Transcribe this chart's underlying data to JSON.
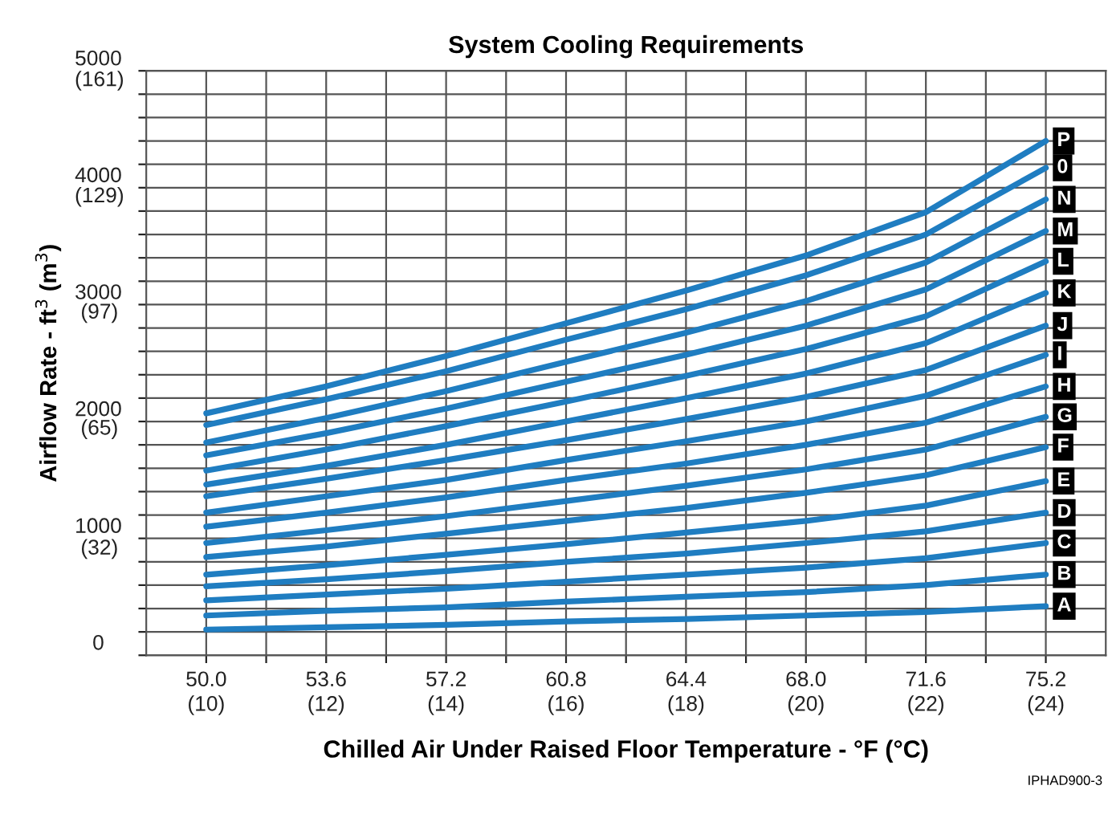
{
  "chart_data": {
    "type": "line",
    "title": "System Cooling Requirements",
    "xlabel": "Chilled Air Under Raised Floor Temperature - °F (°C)",
    "ylabel": "Airflow Rate - ft$^{3}$ (m$^{3}$)",
    "annotations": [
      "IPHAD900-3"
    ],
    "x": [
      50.0,
      53.6,
      57.2,
      60.8,
      64.4,
      68.0,
      71.6,
      75.2
    ],
    "xlim": [
      48.2,
      77.0
    ],
    "xticks": [
      {
        "value": 50.0,
        "label": "50.0"
      },
      {
        "value": 51.8,
        "label": null
      },
      {
        "value": 53.6,
        "label": "53.6"
      },
      {
        "value": 55.4,
        "label": null
      },
      {
        "value": 57.2,
        "label": "57.2"
      },
      {
        "value": 59.0,
        "label": null
      },
      {
        "value": 60.8,
        "label": "60.8"
      },
      {
        "value": 62.6,
        "label": null
      },
      {
        "value": 64.4,
        "label": "64.4"
      },
      {
        "value": 66.2,
        "label": null
      },
      {
        "value": 68.0,
        "label": "68.0"
      },
      {
        "value": 69.8,
        "label": null
      },
      {
        "value": 71.6,
        "label": "71.6"
      },
      {
        "value": 73.4,
        "label": null
      },
      {
        "value": 75.2,
        "label": "75.2"
      }
    ],
    "x2lim": [
      9.0,
      25.0
    ],
    "x2ticks": [
      {
        "value": 10,
        "label": "(10)"
      },
      {
        "value": 12,
        "label": "(12)"
      },
      {
        "value": 14,
        "label": "(14)"
      },
      {
        "value": 16,
        "label": "(16)"
      },
      {
        "value": 18,
        "label": "(18)"
      },
      {
        "value": 20,
        "label": "(20)"
      },
      {
        "value": 22,
        "label": "(22)"
      },
      {
        "value": 24,
        "label": "(24)"
      }
    ],
    "y2lim": [
      0,
      161
    ],
    "y2ticks": [
      {
        "value": 32,
        "label": "(32)"
      },
      {
        "value": 65,
        "label": "(65)"
      },
      {
        "value": 97,
        "label": "(97)"
      },
      {
        "value": 129,
        "label": "(129)"
      },
      {
        "value": 161,
        "label": "(161)"
      }
    ],
    "ylim": [
      0,
      5000
    ],
    "yticks": [
      0,
      {
        "value": 200,
        "label": null
      },
      {
        "value": 400,
        "label": null
      },
      {
        "value": 600,
        "label": null
      },
      {
        "value": 800,
        "label": null
      },
      1000,
      {
        "value": 1200,
        "label": null
      },
      {
        "value": 1400,
        "label": null
      },
      {
        "value": 1600,
        "label": null
      },
      {
        "value": 1800,
        "label": null
      },
      2000,
      {
        "value": 2200,
        "label": null
      },
      {
        "value": 2400,
        "label": null
      },
      {
        "value": 2600,
        "label": null
      },
      {
        "value": 2800,
        "label": null
      },
      3000,
      {
        "value": 3200,
        "label": null
      },
      {
        "value": 3400,
        "label": null
      },
      {
        "value": 3600,
        "label": null
      },
      {
        "value": 3800,
        "label": null
      },
      4000,
      {
        "value": 4200,
        "label": null
      },
      {
        "value": 4400,
        "label": null
      },
      {
        "value": 4600,
        "label": null
      },
      {
        "value": 4800,
        "label": null
      },
      5000
    ],
    "grid": true,
    "marker": "none",
    "line_style": "solid",
    "legend": false,
    "series": [
      {
        "name": "A",
        "color": "#1f7dc1",
        "values": [
          220,
          240,
          260,
          290,
          310,
          340,
          370,
          420
        ]
      },
      {
        "name": "B",
        "color": "#1f7dc1",
        "values": [
          340,
          380,
          410,
          460,
          500,
          540,
          600,
          690
        ]
      },
      {
        "name": "C",
        "color": "#1f7dc1",
        "values": [
          470,
          520,
          570,
          630,
          690,
          750,
          830,
          960
        ]
      },
      {
        "name": "D",
        "color": "#1f7dc1",
        "values": [
          590,
          650,
          720,
          800,
          870,
          960,
          1060,
          1220
        ]
      },
      {
        "name": "E",
        "color": "#1f7dc1",
        "values": [
          690,
          770,
          860,
          950,
          1050,
          1150,
          1280,
          1490
        ]
      },
      {
        "name": "F",
        "color": "#1f7dc1",
        "values": [
          840,
          930,
          1040,
          1150,
          1260,
          1390,
          1540,
          1780
        ]
      },
      {
        "name": "G",
        "color": "#1f7dc1",
        "values": [
          960,
          1070,
          1190,
          1320,
          1450,
          1590,
          1760,
          2040
        ]
      },
      {
        "name": "H",
        "color": "#1f7dc1",
        "values": [
          1100,
          1220,
          1350,
          1500,
          1640,
          1800,
          1990,
          2300
        ]
      },
      {
        "name": "I",
        "color": "#1f7dc1",
        "values": [
          1220,
          1360,
          1500,
          1670,
          1830,
          2000,
          2220,
          2570
        ]
      },
      {
        "name": "J",
        "color": "#1f7dc1",
        "values": [
          1360,
          1510,
          1670,
          1840,
          2020,
          2210,
          2440,
          2820
        ]
      },
      {
        "name": "K",
        "color": "#1f7dc1",
        "values": [
          1460,
          1620,
          1800,
          2000,
          2200,
          2410,
          2670,
          3100
        ]
      },
      {
        "name": "L",
        "color": "#1f7dc1",
        "values": [
          1580,
          1760,
          1960,
          2170,
          2390,
          2620,
          2900,
          3370
        ]
      },
      {
        "name": "M",
        "color": "#1f7dc1",
        "values": [
          1710,
          1900,
          2110,
          2340,
          2570,
          2820,
          3130,
          3630
        ]
      },
      {
        "name": "N",
        "color": "#1f7dc1",
        "values": [
          1820,
          2030,
          2260,
          2510,
          2760,
          3030,
          3360,
          3900
        ]
      },
      {
        "name": "0",
        "color": "#1f7dc1",
        "values": [
          1970,
          2190,
          2430,
          2700,
          2960,
          3250,
          3600,
          4170
        ]
      },
      {
        "name": "P",
        "color": "#1f7dc1",
        "values": [
          2070,
          2300,
          2560,
          2840,
          3120,
          3420,
          3790,
          4400
        ]
      }
    ]
  }
}
